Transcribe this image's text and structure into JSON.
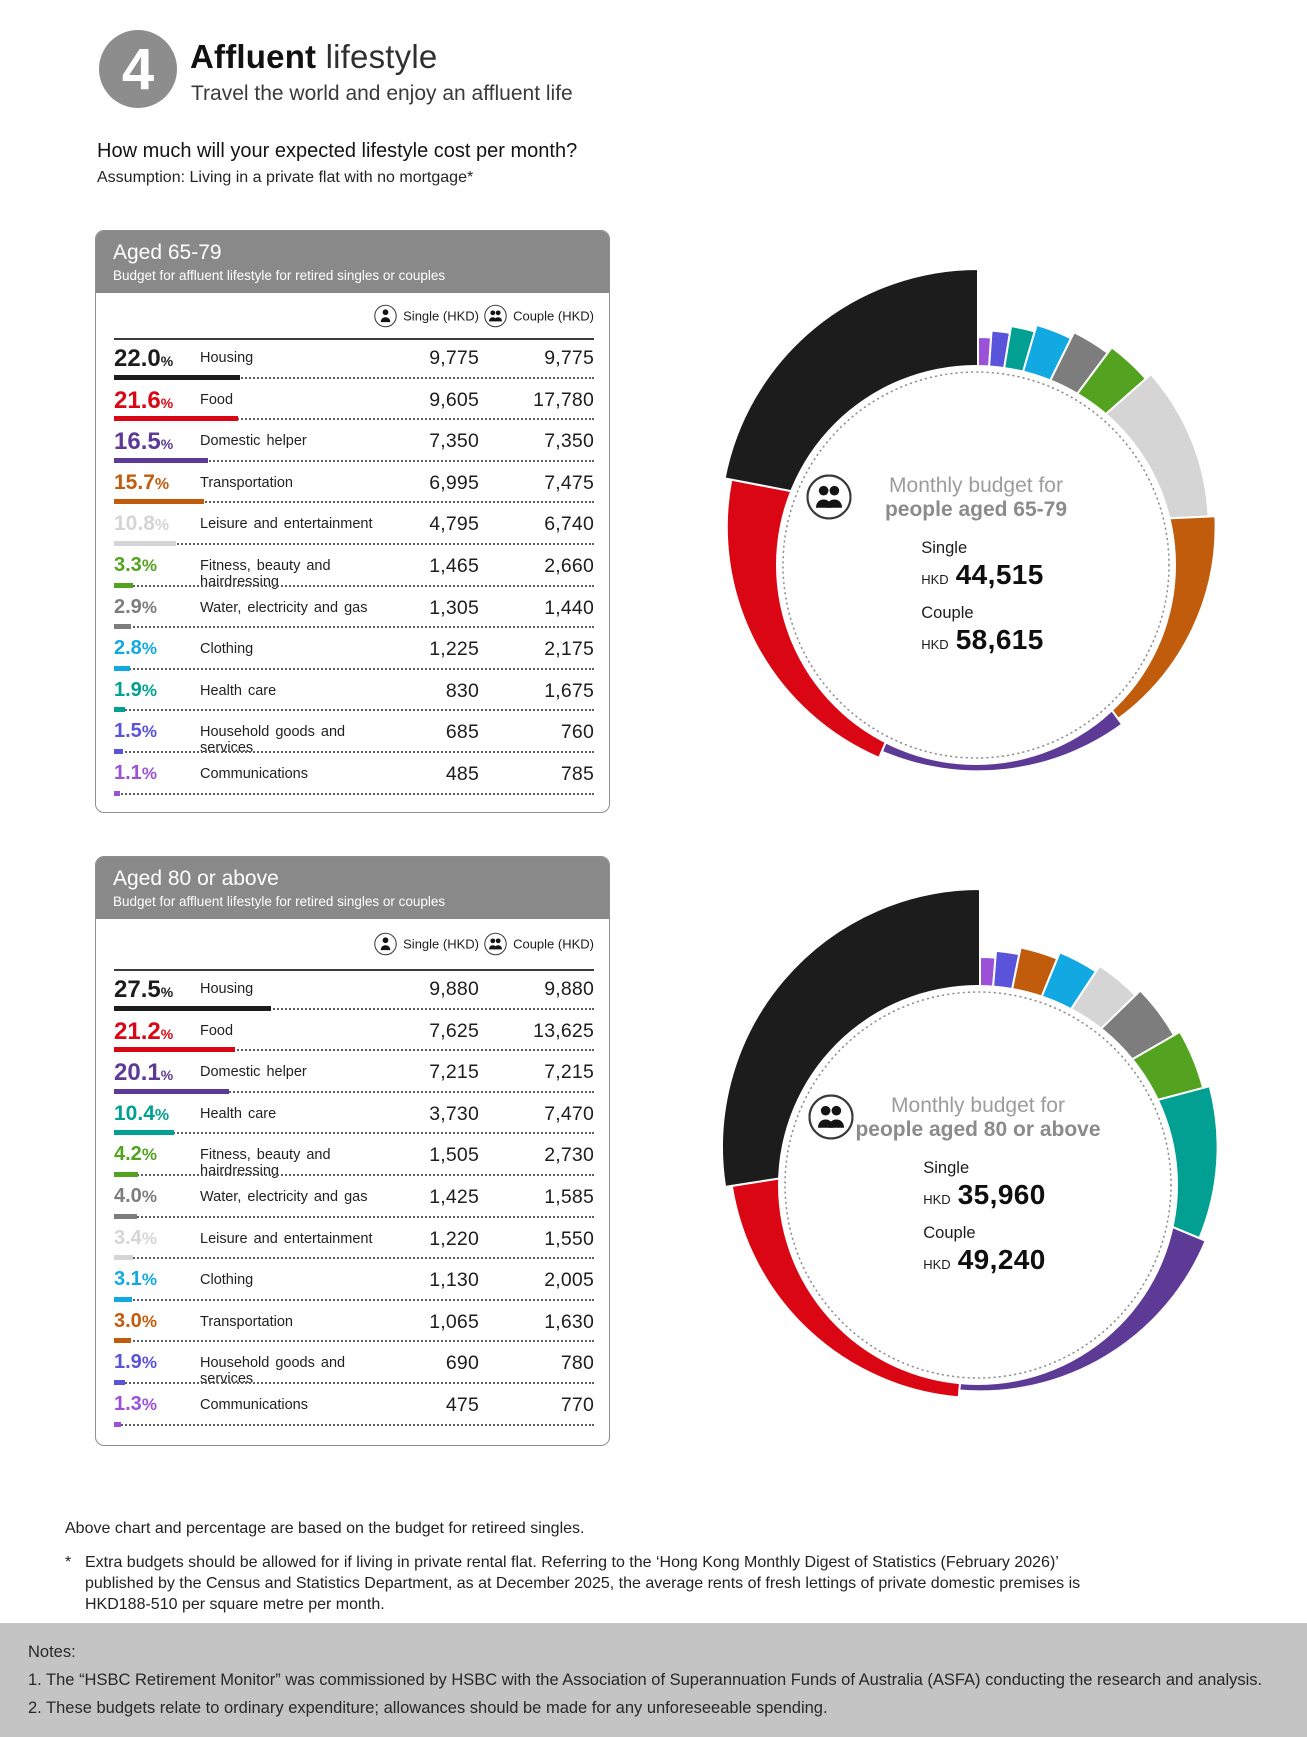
{
  "page": {
    "step_number": "4",
    "title_bold": "Affluent",
    "title_light": " lifestyle",
    "subtitle": "Travel the world and enjoy an affluent life",
    "question": "How much will your expected lifestyle cost per month?",
    "assumption": "Assumption: Living in a private flat with no mortgage*"
  },
  "column_headers": {
    "single": "Single (HKD)",
    "couple": "Couple (HKD)"
  },
  "footer": {
    "chart_note": "Above chart and percentage are based on the budget for retireed singles.",
    "asterisk": "*",
    "asterisk_note": "Extra budgets should be allowed for if living in private rental flat. Referring to the ‘Hong Kong Monthly Digest of Statistics (February 2026)’ published by the Census and Statistics Department, as at December 2025, the average rents of fresh lettings of private domestic premises is HKD188-510 per square metre per month.",
    "notes_title": "Notes:",
    "notes": [
      "1. The “HSBC Retirement Monitor” was commissioned by HSBC with the Association of Superannuation Funds of Australia (ASFA) conducting the research and analysis.",
      "2. These budgets relate to ordinary expenditure; allowances should be made for any unforeseeable spending."
    ]
  },
  "chart_data": [
    {
      "type": "donut",
      "card_title": "Aged 65-79",
      "card_subtitle": "Budget for affluent lifestyle for retired singles or couples",
      "center_line1": "Monthly budget for",
      "center_line2": "people aged 65-79",
      "currency": "HKD",
      "single_label": "Single",
      "couple_label": "Couple",
      "single_total": "44,515",
      "couple_total": "58,615",
      "legend_position": "table-left",
      "unit": "percent of single budget",
      "rows": [
        {
          "pct": 22.0,
          "label": "Housing",
          "single": "9,775",
          "couple": "9,775",
          "color": "#1c1c1c"
        },
        {
          "pct": 21.6,
          "label": "Food",
          "single": "9,605",
          "couple": "17,780",
          "color": "#db0613"
        },
        {
          "pct": 16.5,
          "label": "Domestic helper",
          "single": "7,350",
          "couple": "7,350",
          "color": "#5e3a97"
        },
        {
          "pct": 15.7,
          "label": "Transportation",
          "single": "6,995",
          "couple": "7,475",
          "color": "#c25c0d"
        },
        {
          "pct": 10.8,
          "label": "Leisure and entertainment",
          "single": "4,795",
          "couple": "6,740",
          "color": "#d5d5d5"
        },
        {
          "pct": 3.3,
          "label": "Fitness, beauty and hairdressing",
          "single": "1,465",
          "couple": "2,660",
          "color": "#53a320"
        },
        {
          "pct": 2.9,
          "label": "Water, electricity and gas",
          "single": "1,305",
          "couple": "1,440",
          "color": "#7d7d7d"
        },
        {
          "pct": 2.8,
          "label": "Clothing",
          "single": "1,225",
          "couple": "2,175",
          "color": "#12a8e2"
        },
        {
          "pct": 1.9,
          "label": "Health care",
          "single": "830",
          "couple": "1,675",
          "color": "#02a092"
        },
        {
          "pct": 1.5,
          "label": "Household goods and services",
          "single": "685",
          "couple": "760",
          "color": "#5a54da"
        },
        {
          "pct": 1.1,
          "label": "Communications",
          "single": "485",
          "couple": "785",
          "color": "#9c52d6"
        }
      ]
    },
    {
      "type": "donut",
      "card_title": "Aged 80 or above",
      "card_subtitle": "Budget for affluent lifestyle for retired singles or couples",
      "center_line1": "Monthly budget for",
      "center_line2": "people aged 80 or above",
      "currency": "HKD",
      "single_label": "Single",
      "couple_label": "Couple",
      "single_total": "35,960",
      "couple_total": "49,240",
      "legend_position": "table-left",
      "unit": "percent of single budget",
      "rows": [
        {
          "pct": 27.5,
          "label": "Housing",
          "single": "9,880",
          "couple": "9,880",
          "color": "#1c1c1c"
        },
        {
          "pct": 21.2,
          "label": "Food",
          "single": "7,625",
          "couple": "13,625",
          "color": "#db0613"
        },
        {
          "pct": 20.1,
          "label": "Domestic helper",
          "single": "7,215",
          "couple": "7,215",
          "color": "#5e3a97"
        },
        {
          "pct": 10.4,
          "label": "Health care",
          "single": "3,730",
          "couple": "7,470",
          "color": "#02a092"
        },
        {
          "pct": 4.2,
          "label": "Fitness, beauty and hairdressing",
          "single": "1,505",
          "couple": "2,730",
          "color": "#53a320"
        },
        {
          "pct": 4.0,
          "label": "Water, electricity and gas",
          "single": "1,425",
          "couple": "1,585",
          "color": "#7d7d7d"
        },
        {
          "pct": 3.4,
          "label": "Leisure and entertainment",
          "single": "1,220",
          "couple": "1,550",
          "color": "#d5d5d5"
        },
        {
          "pct": 3.1,
          "label": "Clothing",
          "single": "1,130",
          "couple": "2,005",
          "color": "#12a8e2"
        },
        {
          "pct": 3.0,
          "label": "Transportation",
          "single": "1,065",
          "couple": "1,630",
          "color": "#c25c0d"
        },
        {
          "pct": 1.9,
          "label": "Household goods and services",
          "single": "690",
          "couple": "780",
          "color": "#5a54da"
        },
        {
          "pct": 1.3,
          "label": "Communications",
          "single": "475",
          "couple": "770",
          "color": "#9c52d6"
        }
      ]
    }
  ]
}
